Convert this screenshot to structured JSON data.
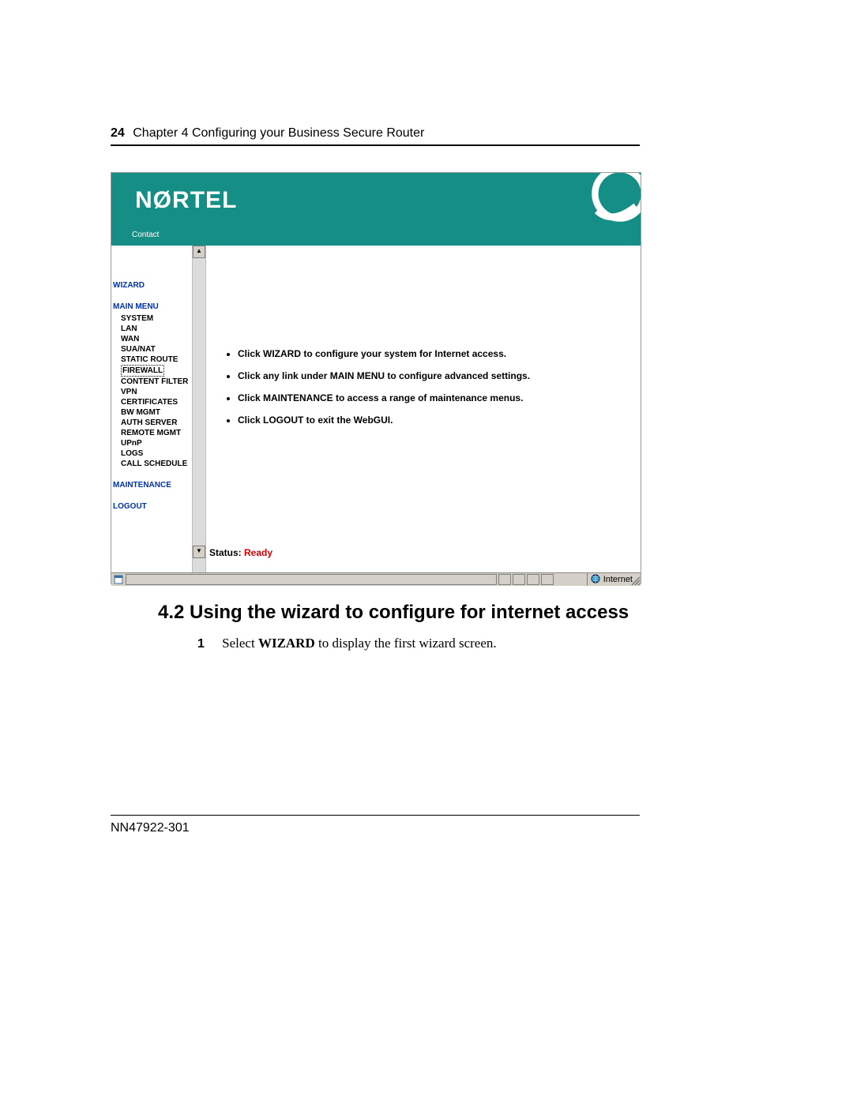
{
  "page_header": {
    "number": "24",
    "chapter": "Chapter 4  Configuring your Business Secure Router"
  },
  "colors": {
    "teal": "#158f86",
    "link_blue": "#0033aa",
    "ready_red": "#cc0000",
    "statusbar": "#d4d0c8"
  },
  "screenshot": {
    "logo_text": "NØRTEL",
    "contact": "Contact",
    "nav": {
      "wizard": "WIZARD",
      "main_menu": "MAIN MENU",
      "items": [
        "SYSTEM",
        "LAN",
        "WAN",
        "SUA/NAT",
        "STATIC ROUTE",
        "FIREWALL",
        "CONTENT FILTER",
        "VPN",
        "CERTIFICATES",
        "BW MGMT",
        "AUTH SERVER",
        "REMOTE MGMT",
        "UPnP",
        "LOGS",
        "CALL SCHEDULE"
      ],
      "selected_index": 5,
      "maintenance": "MAINTENANCE",
      "logout": "LOGOUT"
    },
    "bullets": [
      "Click WIZARD to configure your system for Internet access.",
      "Click any link under MAIN MENU to configure advanced settings.",
      "Click MAINTENANCE to access a range of maintenance menus.",
      "Click LOGOUT to exit the WebGUI."
    ],
    "status": {
      "label": "Status:",
      "value": "Ready"
    },
    "statusbar_zone": "Internet"
  },
  "section": {
    "title": "4.2 Using the wizard to configure for internet access",
    "step_num": "1",
    "step_pre": "Select ",
    "step_bold": "WIZARD",
    "step_post": " to display the first wizard screen."
  },
  "footer": "NN47922-301"
}
